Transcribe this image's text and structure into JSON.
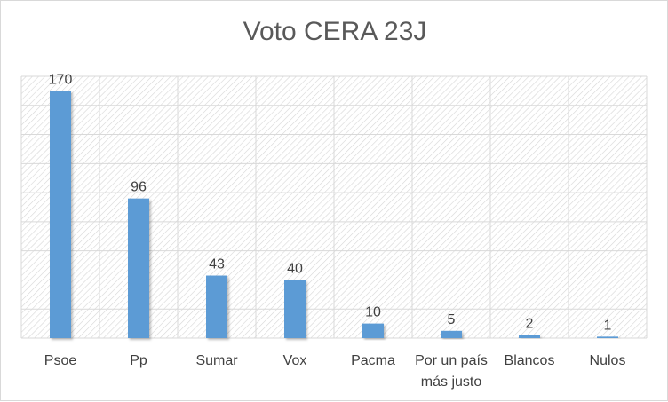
{
  "chart_data": {
    "type": "bar",
    "title": "Voto CERA 23J",
    "categories": [
      "Psoe",
      "Pp",
      "Sumar",
      "Vox",
      "Pacma",
      "Por un país más justo",
      "Blancos",
      "Nulos"
    ],
    "category_lines": [
      [
        "Psoe"
      ],
      [
        "Pp"
      ],
      [
        "Sumar"
      ],
      [
        "Vox"
      ],
      [
        "Pacma"
      ],
      [
        "Por un país",
        "más justo"
      ],
      [
        "Blancos"
      ],
      [
        "Nulos"
      ]
    ],
    "values": [
      170,
      96,
      43,
      40,
      10,
      5,
      2,
      1
    ],
    "ylim": [
      0,
      180
    ],
    "grid": true,
    "xlabel": "",
    "ylabel": "",
    "colors": {
      "bar": "#5b9bd5",
      "grid": "#d9d9d9",
      "hatch": "#d0d0d0",
      "text": "#404040",
      "title": "#595959"
    }
  }
}
